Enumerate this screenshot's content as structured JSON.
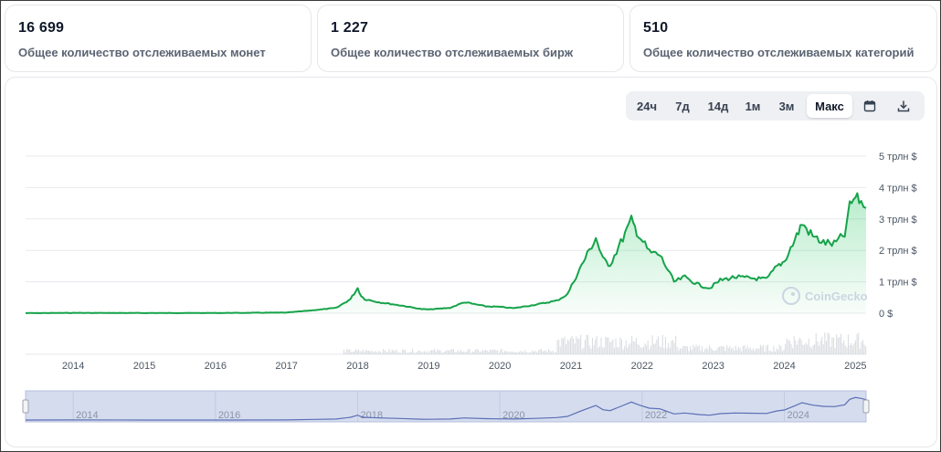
{
  "stats": [
    {
      "value": "16 699",
      "label": "Общее количество отслеживаемых монет"
    },
    {
      "value": "1 227",
      "label": "Общее количество отслеживаемых бирж"
    },
    {
      "value": "510",
      "label": "Общее количество отслеживаемых категорий"
    }
  ],
  "range_buttons": [
    "24ч",
    "7д",
    "14д",
    "1м",
    "3м",
    "Макс"
  ],
  "range_selected": "Макс",
  "toolbar_icons": [
    "calendar-icon",
    "download-icon"
  ],
  "watermark": "CoinGecko",
  "colors": {
    "line": "#16a34a",
    "fill": "#22c55e",
    "volume": "#d1d5db",
    "navigator_fill": "#d5dcee",
    "navigator_line": "#5b6fb5"
  },
  "chart_data": {
    "type": "area",
    "y_unit_labels": [
      "0 $",
      "1 трлн $",
      "2 трлн $",
      "3 трлн $",
      "4 трлн $",
      "5 трлн $"
    ],
    "ylim": [
      0,
      5
    ],
    "xlim": [
      2013.33,
      2025.15
    ],
    "x_ticks": [
      "2014",
      "2015",
      "2016",
      "2017",
      "2018",
      "2019",
      "2020",
      "2021",
      "2022",
      "2023",
      "2024",
      "2025"
    ],
    "grid": true,
    "series": [
      {
        "x": [
          2013.33,
          2014.0,
          2015.0,
          2016.0,
          2017.0,
          2017.4,
          2017.7,
          2017.9,
          2018.0,
          2018.05,
          2018.1,
          2018.3,
          2018.6,
          2018.9,
          2019.0,
          2019.3,
          2019.5,
          2019.8,
          2020.0,
          2020.2,
          2020.5,
          2020.8,
          2020.95,
          2021.1,
          2021.2,
          2021.35,
          2021.45,
          2021.55,
          2021.7,
          2021.85,
          2021.95,
          2022.1,
          2022.25,
          2022.45,
          2022.6,
          2022.8,
          2022.95,
          2023.1,
          2023.3,
          2023.5,
          2023.75,
          2023.9,
          2024.0,
          2024.15,
          2024.25,
          2024.4,
          2024.55,
          2024.7,
          2024.85,
          2024.92,
          2025.0,
          2025.08,
          2025.15
        ],
        "values": [
          0.002,
          0.01,
          0.006,
          0.007,
          0.018,
          0.1,
          0.17,
          0.45,
          0.8,
          0.55,
          0.45,
          0.35,
          0.25,
          0.13,
          0.12,
          0.17,
          0.35,
          0.22,
          0.2,
          0.16,
          0.27,
          0.4,
          0.6,
          1.3,
          1.75,
          2.4,
          1.7,
          1.55,
          2.25,
          2.95,
          2.5,
          1.95,
          1.85,
          1.0,
          1.15,
          0.9,
          0.8,
          1.05,
          1.15,
          1.12,
          1.08,
          1.5,
          1.65,
          2.35,
          2.85,
          2.45,
          2.25,
          2.2,
          2.5,
          3.4,
          3.7,
          3.55,
          3.35
        ]
      }
    ],
    "navigator_ticks": [
      "2014",
      "2016",
      "2018",
      "2020",
      "2022",
      "2024"
    ]
  }
}
